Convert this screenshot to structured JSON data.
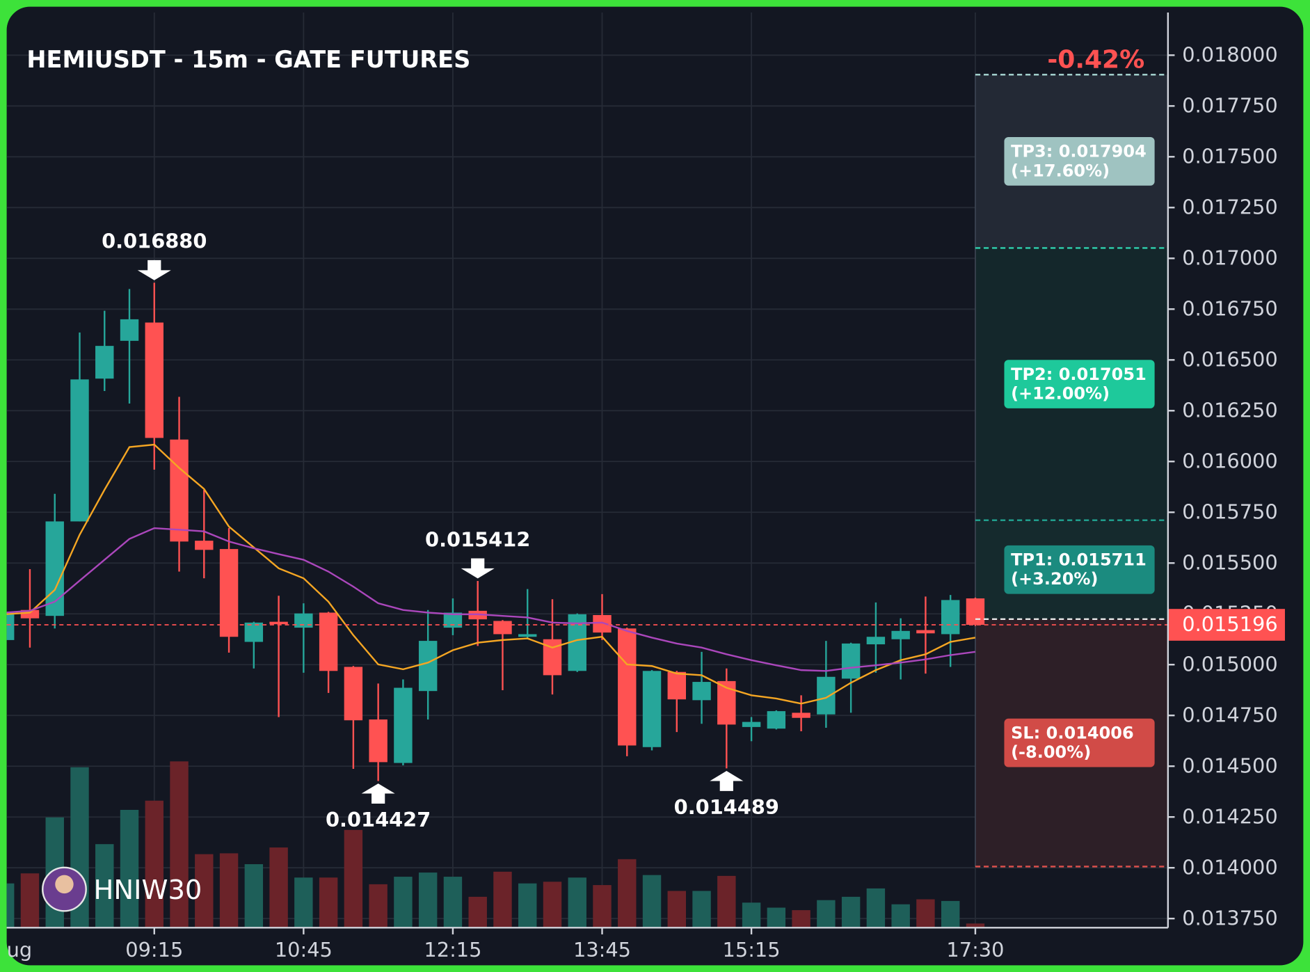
{
  "chart_data": {
    "type": "candlestick",
    "title": "HEMIUSDT - 15m - GATE FUTURES",
    "change": {
      "value": -0.42,
      "label": "-0.42%"
    },
    "watermark": "HNIW30",
    "up_color": "#26a69a",
    "down_color": "#ff5252",
    "up_volume_color": "#1e5f59",
    "down_volume_color": "#6b2329",
    "categories": [
      "ug",
      null,
      null,
      null,
      null,
      null,
      "09:15",
      null,
      null,
      null,
      null,
      null,
      "10:45",
      null,
      null,
      null,
      null,
      null,
      "12:15",
      null,
      null,
      null,
      null,
      null,
      "13:45",
      null,
      null,
      null,
      null,
      null,
      "15:15",
      null,
      null,
      null,
      null,
      null,
      null,
      null,
      null,
      "17:30"
    ],
    "open": [
      0.015121,
      0.015269,
      0.01524,
      0.015705,
      0.016408,
      0.016594,
      0.016684,
      0.016108,
      0.01561,
      0.015569,
      0.015112,
      0.015211,
      0.015182,
      0.015256,
      0.014989,
      0.01473,
      0.014516,
      0.01487,
      0.015182,
      0.015265,
      0.015215,
      0.015137,
      0.015125,
      0.014969,
      0.015244,
      0.015178,
      0.014594,
      0.014964,
      0.014825,
      0.014919,
      0.014693,
      0.014685,
      0.014763,
      0.014755,
      0.014931,
      0.0151,
      0.015125,
      0.01517,
      0.01515,
      0.015326
    ],
    "high": [
      0.015277,
      0.01547,
      0.015841,
      0.016635,
      0.016742,
      0.016849,
      0.01688,
      0.016318,
      0.015861,
      0.015672,
      0.015211,
      0.015339,
      0.015302,
      0.01526,
      0.014993,
      0.014907,
      0.014927,
      0.015269,
      0.015326,
      0.015412,
      0.015219,
      0.015372,
      0.015322,
      0.015252,
      0.015347,
      0.015182,
      0.014973,
      0.014969,
      0.015063,
      0.014981,
      0.014742,
      0.014775,
      0.014849,
      0.015117,
      0.015108,
      0.015306,
      0.015228,
      0.015335,
      0.015343,
      0.01533
    ],
    "low": [
      0.015104,
      0.015084,
      0.015178,
      0.015705,
      0.016347,
      0.016285,
      0.01596,
      0.015458,
      0.015425,
      0.015059,
      0.014981,
      0.014742,
      0.01496,
      0.014861,
      0.014487,
      0.014427,
      0.014504,
      0.01473,
      0.015145,
      0.015092,
      0.014874,
      0.015125,
      0.014853,
      0.014964,
      0.015121,
      0.014549,
      0.014578,
      0.014668,
      0.014709,
      0.014489,
      0.014623,
      0.014681,
      0.014672,
      0.014689,
      0.014763,
      0.01496,
      0.014927,
      0.014956,
      0.014989,
      0.01519
    ],
    "close": [
      0.015256,
      0.015228,
      0.015705,
      0.016404,
      0.016569,
      0.0167,
      0.016116,
      0.015606,
      0.015565,
      0.015137,
      0.015207,
      0.015199,
      0.015252,
      0.014969,
      0.014726,
      0.01452,
      0.014886,
      0.015117,
      0.015256,
      0.015223,
      0.01515,
      0.01515,
      0.014948,
      0.015248,
      0.015158,
      0.014602,
      0.014969,
      0.014829,
      0.014915,
      0.014705,
      0.014718,
      0.014771,
      0.014738,
      0.01494,
      0.015104,
      0.015137,
      0.015166,
      0.015154,
      0.015318,
      0.015196
    ],
    "volume": [
      53,
      65,
      132,
      192,
      100,
      141,
      152,
      199,
      88,
      89,
      76,
      96,
      60,
      60,
      117,
      52,
      61,
      66,
      61,
      37,
      67,
      53,
      55,
      60,
      51,
      82,
      63,
      44,
      44,
      62,
      30,
      24,
      21,
      33,
      37,
      47,
      28,
      34,
      32,
      5
    ],
    "overlays": [
      {
        "color": "#f5a623",
        "values": [
          0.015248,
          0.015256,
          0.015368,
          0.015639,
          0.015861,
          0.016071,
          0.016083,
          0.015968,
          0.015865,
          0.01568,
          0.015577,
          0.015474,
          0.015425,
          0.01531,
          0.015145,
          0.015001,
          0.014977,
          0.01501,
          0.015071,
          0.015108,
          0.015121,
          0.015129,
          0.015084,
          0.015121,
          0.015137,
          0.015001,
          0.014993,
          0.014956,
          0.014948,
          0.014886,
          0.014849,
          0.014833,
          0.014808,
          0.014837,
          0.014911,
          0.014973,
          0.015022,
          0.015051,
          0.015112,
          0.015133
        ]
      },
      {
        "color": "#ab47bc",
        "values": [
          0.015256,
          0.015265,
          0.01531,
          0.015413,
          0.015516,
          0.015619,
          0.015672,
          0.015664,
          0.015656,
          0.015606,
          0.015573,
          0.015544,
          0.015516,
          0.015458,
          0.015384,
          0.015302,
          0.015269,
          0.015256,
          0.015248,
          0.015248,
          0.01524,
          0.015232,
          0.015207,
          0.015203,
          0.015207,
          0.015166,
          0.015133,
          0.015104,
          0.015084,
          0.015051,
          0.015022,
          0.014997,
          0.014973,
          0.014969,
          0.014985,
          0.014997,
          0.01501,
          0.015026,
          0.015047,
          0.015063
        ]
      }
    ],
    "annotations": [
      {
        "kind": "high",
        "value": 0.01688,
        "label": "0.016880"
      },
      {
        "kind": "high",
        "value": 0.015412,
        "label": "0.015412"
      },
      {
        "kind": "low",
        "value": 0.014427,
        "label": "0.014427"
      },
      {
        "kind": "low",
        "value": 0.014489,
        "label": "0.014489"
      }
    ],
    "entry": 0.015224,
    "last_price": 0.015196,
    "targets": [
      {
        "value": 0.017904,
        "label": "TP3: 0.017904",
        "change": 17.6,
        "change_label": "(+17.60%)",
        "color": "#9fc3c1",
        "zone_color": "#232935",
        "line_color": "#a8d8d4"
      },
      {
        "value": 0.017051,
        "label": "TP2: 0.017051",
        "change": 12.0,
        "change_label": "(+12.00%)",
        "color": "#1ec99b",
        "zone_color": "#14272b",
        "line_color": "#2fd1ae"
      },
      {
        "value": 0.015711,
        "label": "TP1: 0.015711",
        "change": 3.2,
        "change_label": "(+3.20%)",
        "color": "#1b8b7f",
        "zone_color": "#152a2d",
        "line_color": "#22a592"
      }
    ],
    "stop": {
      "value": 0.014006,
      "label": "SL: 0.014006",
      "change": -8.0,
      "change_label": "(-8.00%)",
      "color": "#d14b47",
      "zone_color": "#2d1f27",
      "line_color": "#e0504c"
    },
    "ylim": [
      0.013705,
      0.01821
    ],
    "yticks": [
      {
        "value": 0.018,
        "label": "0.018000"
      },
      {
        "value": 0.01775,
        "label": "0.017750"
      },
      {
        "value": 0.0175,
        "label": "0.017500"
      },
      {
        "value": 0.01725,
        "label": "0.017250"
      },
      {
        "value": 0.017,
        "label": "0.017000"
      },
      {
        "value": 0.01675,
        "label": "0.016750"
      },
      {
        "value": 0.0165,
        "label": "0.016500"
      },
      {
        "value": 0.01625,
        "label": "0.016250"
      },
      {
        "value": 0.016,
        "label": "0.016000"
      },
      {
        "value": 0.01575,
        "label": "0.015750"
      },
      {
        "value": 0.0155,
        "label": "0.015500"
      },
      {
        "value": 0.01525,
        "label": "0.015250"
      },
      {
        "value": 0.015,
        "label": "0.015000"
      },
      {
        "value": 0.01475,
        "label": "0.014750"
      },
      {
        "value": 0.0145,
        "label": "0.014500"
      },
      {
        "value": 0.01425,
        "label": "0.014250"
      },
      {
        "value": 0.014,
        "label": "0.014000"
      },
      {
        "value": 0.01375,
        "label": "0.013750"
      }
    ],
    "grid": true
  }
}
